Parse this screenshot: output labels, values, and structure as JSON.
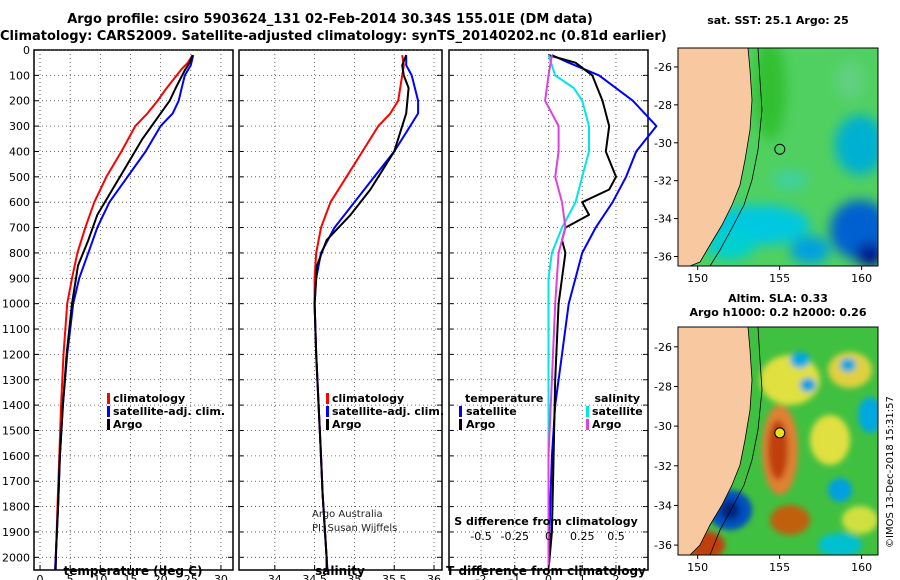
{
  "header": {
    "line1": "Argo profile: csiro 5903624_131 02-Feb-2014 30.34S 155.01E (DM data)",
    "line2": "Climatology: CARS2009. Satellite-adjusted climatology: synTS_20140202.nc (0.81d earlier)"
  },
  "depth_ticks": [
    "0",
    "100",
    "200",
    "300",
    "400",
    "500",
    "600",
    "700",
    "800",
    "900",
    "1000",
    "1100",
    "1200",
    "1300",
    "1400",
    "1500",
    "1600",
    "1700",
    "1800",
    "1900",
    "2000"
  ],
  "colors": {
    "climatology": "#ff0000",
    "satellite": "#0000ff",
    "argo": "#000000",
    "cyan": "#00e5e5",
    "magenta": "#e040e0",
    "land": "#f8c8a0"
  },
  "chart_data": [
    {
      "type": "line",
      "xlabel": "temperature (deg C)",
      "x_ticks": [
        "0",
        "5",
        "10",
        "15",
        "20",
        "25",
        "30"
      ],
      "xlim": [
        -1,
        32
      ],
      "ylim": [
        2050,
        0
      ],
      "grid": true,
      "legend_position": "lower-middle",
      "legend": [
        "climatology",
        "satellite-adj. clim.",
        "Argo"
      ],
      "series": [
        {
          "name": "climatology",
          "color": "#ff0000",
          "x": [
            25.3,
            24.5,
            23.5,
            21.0,
            19.5,
            17.8,
            15.8,
            13.5,
            11.0,
            9.0,
            7.5,
            6.2,
            5.3,
            4.5,
            3.9,
            3.5,
            3.2,
            2.9,
            2.7,
            2.5
          ],
          "y": [
            20,
            50,
            75,
            150,
            200,
            250,
            300,
            400,
            500,
            600,
            700,
            800,
            900,
            1000,
            1200,
            1400,
            1600,
            1800,
            1950,
            2050
          ]
        },
        {
          "name": "satellite-adj. clim.",
          "color": "#0000ff",
          "x": [
            25.4,
            25.0,
            24.0,
            23.5,
            23.0,
            22.0,
            20.0,
            17.5,
            14.5,
            11.5,
            9.5,
            8.0,
            6.5,
            5.5,
            4.5,
            3.8,
            3.3,
            3.0,
            2.7,
            2.5
          ],
          "y": [
            20,
            60,
            100,
            150,
            200,
            250,
            300,
            400,
            500,
            600,
            700,
            800,
            900,
            1000,
            1200,
            1400,
            1600,
            1800,
            1950,
            2050
          ]
        },
        {
          "name": "Argo",
          "color": "#000000",
          "x": [
            25.3,
            24.8,
            24.0,
            22.5,
            21.5,
            20.0,
            18.5,
            17.0,
            14.5,
            12.0,
            9.5,
            8.0,
            6.3,
            5.3,
            4.4,
            3.8,
            3.3,
            3.0,
            2.7,
            2.6
          ],
          "y": [
            20,
            50,
            80,
            150,
            200,
            250,
            300,
            350,
            450,
            550,
            650,
            750,
            850,
            1000,
            1200,
            1400,
            1600,
            1800,
            1950,
            2050
          ]
        }
      ]
    },
    {
      "type": "line",
      "xlabel": "salinity",
      "x_ticks": [
        "34",
        "34.5",
        "35",
        "35.5",
        "36"
      ],
      "xlim": [
        33.55,
        36.1
      ],
      "ylim": [
        2050,
        0
      ],
      "grid": true,
      "legend_position": "lower-middle",
      "legend": [
        "climatology",
        "satellite-adj. clim.",
        "Argo"
      ],
      "series": [
        {
          "name": "climatology",
          "color": "#ff0000",
          "x": [
            35.6,
            35.62,
            35.6,
            35.55,
            35.45,
            35.3,
            35.1,
            34.9,
            34.7,
            34.58,
            34.52,
            34.5,
            34.5,
            34.52,
            34.55,
            34.58,
            34.6,
            34.63,
            34.65,
            34.66
          ],
          "y": [
            20,
            60,
            100,
            200,
            250,
            300,
            400,
            500,
            600,
            700,
            800,
            900,
            1000,
            1200,
            1400,
            1600,
            1750,
            1900,
            2000,
            2050
          ]
        },
        {
          "name": "satellite-adj. clim.",
          "color": "#0000ff",
          "x": [
            35.65,
            35.65,
            35.72,
            35.8,
            35.8,
            35.7,
            35.5,
            35.25,
            35.0,
            34.75,
            34.58,
            34.52,
            34.5,
            34.52,
            34.55,
            34.58,
            34.6,
            34.63,
            34.65,
            34.66
          ],
          "y": [
            20,
            60,
            100,
            200,
            250,
            300,
            400,
            500,
            600,
            700,
            800,
            900,
            1000,
            1200,
            1400,
            1600,
            1750,
            1900,
            2000,
            2050
          ]
        },
        {
          "name": "Argo",
          "color": "#000000",
          "x": [
            35.65,
            35.6,
            35.62,
            35.68,
            35.65,
            35.6,
            35.5,
            35.4,
            35.2,
            34.95,
            34.65,
            34.53,
            34.5,
            34.52,
            34.55,
            34.58,
            34.6,
            34.63,
            34.65,
            34.65
          ],
          "y": [
            20,
            60,
            100,
            150,
            250,
            300,
            400,
            450,
            550,
            650,
            750,
            850,
            1000,
            1200,
            1400,
            1600,
            1750,
            1900,
            2000,
            2050
          ]
        }
      ]
    },
    {
      "type": "line",
      "xlabel": "T difference from climatology",
      "x_ticks": [
        "-2",
        "-1",
        "0",
        "1",
        "2"
      ],
      "top_xlabel": "S difference from climatology",
      "top_x_ticks": [
        "-0.5",
        "-0.25",
        "0",
        "0.25",
        "0.5"
      ],
      "xlim": [
        -2.95,
        2.95
      ],
      "ylim": [
        2050,
        0
      ],
      "grid": true,
      "legend_position": "lower-middle",
      "legend_left_title": "temperature",
      "legend_right_title": "salinity",
      "legend_left": [
        "satellite",
        "Argo"
      ],
      "legend_right": [
        "satellite",
        "Argo"
      ],
      "series": [
        {
          "name": "temperature satellite",
          "color": "#0000ff",
          "x": [
            0.1,
            0.6,
            1.5,
            2.5,
            3.2,
            2.6,
            2.3,
            1.9,
            1.4,
            1.0,
            0.8,
            0.6,
            0.4,
            0.2,
            0.1,
            0.05,
            0.02,
            0.0
          ],
          "y": [
            20,
            50,
            100,
            200,
            300,
            400,
            500,
            600,
            700,
            800,
            900,
            1000,
            1200,
            1400,
            1600,
            1800,
            1950,
            2050
          ]
        },
        {
          "name": "temperature Argo",
          "color": "#000000",
          "x": [
            0.0,
            0.8,
            1.3,
            1.6,
            1.8,
            1.7,
            2.0,
            1.8,
            1.0,
            1.2,
            0.5,
            0.4,
            0.5,
            0.3,
            0.2,
            0.15,
            0.1,
            0.0
          ],
          "y": [
            20,
            50,
            100,
            200,
            300,
            400,
            500,
            550,
            600,
            650,
            700,
            750,
            800,
            1000,
            1300,
            1600,
            1900,
            2050
          ]
        },
        {
          "name": "salinity satellite",
          "color": "#00e5e5",
          "x": [
            0.0,
            0.2,
            0.75,
            1.0,
            1.1,
            1.2,
            1.2,
            1.0,
            0.8,
            0.4,
            0.1,
            0.0,
            0.0
          ],
          "y": [
            20,
            100,
            150,
            200,
            250,
            300,
            400,
            500,
            600,
            700,
            800,
            900,
            2050
          ]
        },
        {
          "name": "salinity Argo",
          "color": "#e040e0",
          "x": [
            0.1,
            0.0,
            -0.1,
            0.3,
            0.3,
            0.2,
            0.4,
            0.5,
            0.3,
            0.2,
            0.1,
            0.0,
            0.0
          ],
          "y": [
            20,
            100,
            200,
            300,
            400,
            500,
            600,
            700,
            800,
            1000,
            1300,
            1600,
            2050
          ]
        }
      ]
    }
  ],
  "legend_left": {
    "climatology": "climatology",
    "satellite": "satellite-adj. clim.",
    "argo": "Argo"
  },
  "legend_mid": {
    "climatology": "climatology",
    "satellite": "satellite-adj. clim.",
    "argo": "Argo"
  },
  "legend_diff": {
    "temp_title": "temperature",
    "sal_title": "salinity",
    "satellite": "satellite",
    "argo": "Argo",
    "satellite_r": "satellite",
    "argo_r": "Argo"
  },
  "credits": {
    "line1": "Argo Australia",
    "line2": "PI: Susan Wijffels"
  },
  "maps": {
    "sst_title": "sat. SST: 25.1 Argo: 25",
    "sla_title1": "Altim. SLA: 0.33",
    "sla_title2": "Argo h1000: 0.2 h2000: 0.26",
    "lat_ticks": [
      "-26",
      "-28",
      "-30",
      "-32",
      "-34",
      "-36"
    ],
    "lon_ticks": [
      "150",
      "155",
      "160"
    ],
    "float_lon": 155.01,
    "float_lat": -30.34
  },
  "footer": {
    "imos_stamp": "©IMOS 13-Dec-2018 15:31:57"
  }
}
